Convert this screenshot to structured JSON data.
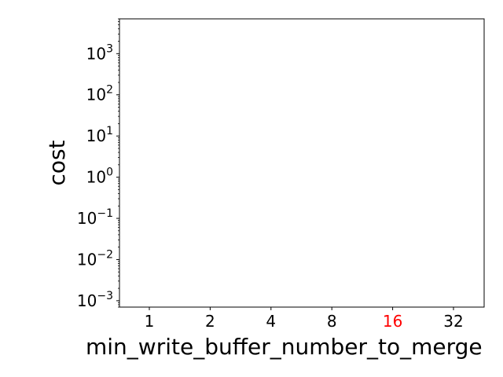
{
  "chart_data": {
    "type": "bar",
    "title": "",
    "xlabel": "min_write_buffer_number_to_merge",
    "ylabel": "cost",
    "categories": [
      "1",
      "2",
      "4",
      "8",
      "16",
      "32"
    ],
    "highlighted_category": "16",
    "highlight_color": "#ff0000",
    "yscale": "log",
    "ylim": [
      0.0007,
      7000
    ],
    "y_ticks": [
      {
        "value": 0.001,
        "base": "10",
        "exp": "−3"
      },
      {
        "value": 0.01,
        "base": "10",
        "exp": "−2"
      },
      {
        "value": 0.1,
        "base": "10",
        "exp": "−1"
      },
      {
        "value": 1,
        "base": "10",
        "exp": "0"
      },
      {
        "value": 10,
        "base": "10",
        "exp": "1"
      },
      {
        "value": 100,
        "base": "10",
        "exp": "2"
      },
      {
        "value": 1000,
        "base": "10",
        "exp": "3"
      }
    ],
    "series": [
      {
        "values": [
          null,
          null,
          null,
          null,
          null,
          null
        ]
      }
    ],
    "grid": false,
    "legend": "none"
  }
}
